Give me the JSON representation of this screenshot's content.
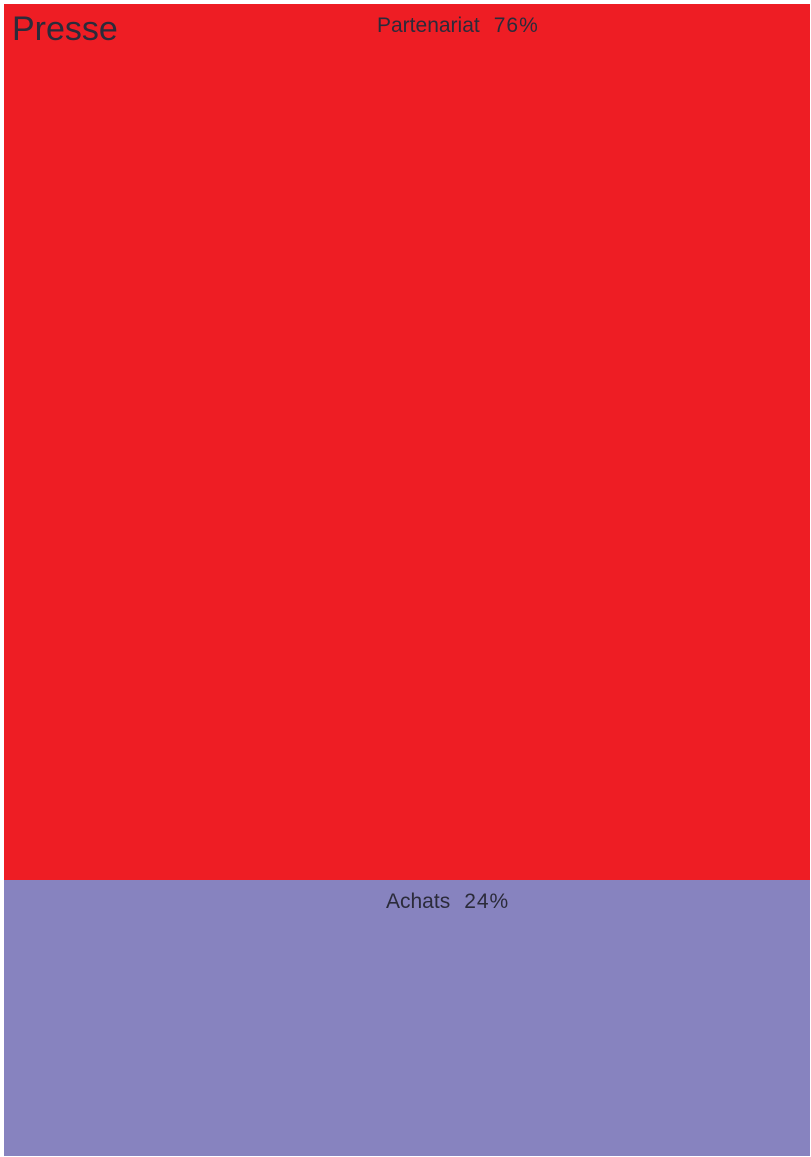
{
  "chart_data": {
    "type": "bar",
    "title": "Presse",
    "categories": [
      "Partenariat",
      "Achats"
    ],
    "values": [
      76,
      24
    ],
    "value_labels": [
      "76%",
      "24%"
    ],
    "colors": [
      "#ee1d24",
      "#8783bf"
    ]
  }
}
